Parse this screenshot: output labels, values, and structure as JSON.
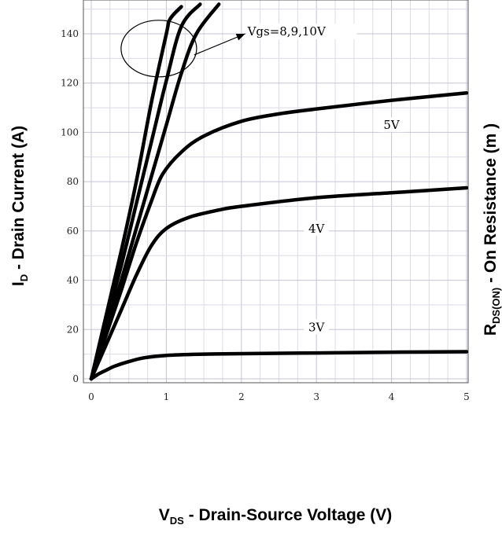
{
  "chart_data": {
    "type": "line",
    "xlabel": {
      "prefix": "V",
      "sub": "DS",
      "text": " - Drain-Source Voltage (V)"
    },
    "ylabel": {
      "prefix": "I",
      "sub": "D",
      "text": " - Drain Current (A)"
    },
    "ylabel_right": {
      "prefix": "R",
      "sub": "DS(ON)",
      "text": " - On Resistance (m  )"
    },
    "xlim": [
      0,
      5
    ],
    "ylim": [
      0,
      150
    ],
    "xticks": [
      "0",
      "1",
      "2",
      "3",
      "4",
      "5"
    ],
    "yticks": [
      "0",
      "20",
      "40",
      "60",
      "80",
      "100",
      "120",
      "140"
    ],
    "grid": true,
    "series": [
      {
        "name": "3V",
        "label_at": [
          3,
          20
        ],
        "points": [
          [
            0,
            0
          ],
          [
            0.1,
            2
          ],
          [
            0.2,
            3.5
          ],
          [
            0.3,
            5
          ],
          [
            0.5,
            7
          ],
          [
            0.7,
            8.5
          ],
          [
            1,
            9.5
          ],
          [
            1.5,
            10
          ],
          [
            2,
            10.2
          ],
          [
            3,
            10.5
          ],
          [
            4,
            10.8
          ],
          [
            5,
            11
          ]
        ]
      },
      {
        "name": "4V",
        "label_at": [
          3,
          60
        ],
        "points": [
          [
            0,
            0
          ],
          [
            0.2,
            14
          ],
          [
            0.4,
            28
          ],
          [
            0.6,
            42
          ],
          [
            0.8,
            54
          ],
          [
            1,
            61
          ],
          [
            1.3,
            65.5
          ],
          [
            1.7,
            68.5
          ],
          [
            2,
            70
          ],
          [
            3,
            73.5
          ],
          [
            4,
            75.5
          ],
          [
            5,
            77.5
          ]
        ]
      },
      {
        "name": "5V",
        "label_at": [
          4,
          102
        ],
        "points": [
          [
            0,
            0
          ],
          [
            0.2,
            18
          ],
          [
            0.4,
            36
          ],
          [
            0.6,
            55
          ],
          [
            0.8,
            72
          ],
          [
            0.95,
            83
          ],
          [
            1.2,
            92
          ],
          [
            1.5,
            98.5
          ],
          [
            2,
            104.5
          ],
          [
            2.5,
            107.5
          ],
          [
            3,
            109.5
          ],
          [
            4,
            113
          ],
          [
            5,
            116
          ]
        ]
      },
      {
        "name": "8V",
        "points": [
          [
            0,
            0
          ],
          [
            0.2,
            26
          ],
          [
            0.4,
            52
          ],
          [
            0.6,
            80
          ],
          [
            0.8,
            112
          ],
          [
            1,
            140
          ],
          [
            1.05,
            146
          ],
          [
            1.2,
            151
          ]
        ]
      },
      {
        "name": "9V",
        "points": [
          [
            0,
            0
          ],
          [
            0.2,
            23
          ],
          [
            0.4,
            46
          ],
          [
            0.6,
            71
          ],
          [
            0.8,
            96
          ],
          [
            1,
            121
          ],
          [
            1.2,
            143
          ],
          [
            1.45,
            152
          ]
        ]
      },
      {
        "name": "10V",
        "points": [
          [
            0,
            0
          ],
          [
            0.2,
            20
          ],
          [
            0.4,
            40
          ],
          [
            0.6,
            61
          ],
          [
            0.8,
            82
          ],
          [
            1,
            103
          ],
          [
            1.2,
            124
          ],
          [
            1.4,
            140
          ],
          [
            1.7,
            152
          ]
        ]
      }
    ],
    "annotation": {
      "text": "Vgs=8,9,10V",
      "ellipse_center": [
        0.9,
        134
      ],
      "arrow_to": [
        2.05,
        140
      ]
    }
  }
}
